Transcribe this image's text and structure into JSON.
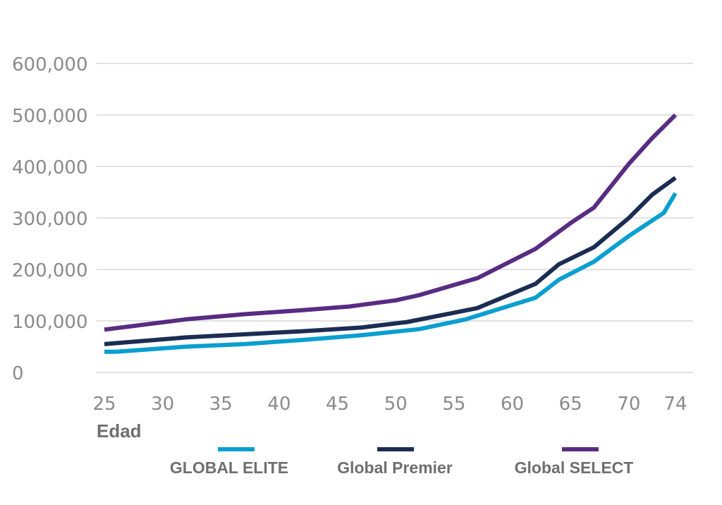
{
  "chart_data": {
    "type": "line",
    "title": "",
    "xlabel": "Edad",
    "ylabel": "",
    "xlim": [
      25,
      74
    ],
    "ylim": [
      0,
      600000
    ],
    "x_ticks": [
      25,
      30,
      35,
      40,
      45,
      50,
      55,
      60,
      65,
      70,
      74
    ],
    "y_ticks": [
      0,
      100000,
      200000,
      300000,
      400000,
      500000,
      600000
    ],
    "y_tick_labels": [
      "0",
      "100,000",
      "200,000",
      "300,000",
      "400,000",
      "500,000",
      "600,000"
    ],
    "grid": true,
    "legend_position": "bottom",
    "series": [
      {
        "name": "GLOBAL ELITE",
        "color": "#0a9fd0",
        "x": [
          25,
          26,
          32,
          37,
          42,
          47,
          52,
          56,
          62,
          64,
          67,
          70,
          73,
          74
        ],
        "y": [
          40000,
          40000,
          50000,
          55000,
          63000,
          72000,
          84000,
          103000,
          145000,
          180000,
          215000,
          265000,
          310000,
          348000
        ]
      },
      {
        "name": "Global Premier",
        "color": "#1b2d52",
        "x": [
          25,
          32,
          37,
          42,
          47,
          51,
          57,
          62,
          64,
          67,
          70,
          72,
          74
        ],
        "y": [
          55000,
          68000,
          74000,
          80000,
          87000,
          98000,
          125000,
          172000,
          210000,
          243000,
          300000,
          345000,
          378000
        ]
      },
      {
        "name": "Global SELECT",
        "color": "#582c83",
        "x": [
          25,
          32,
          37,
          42,
          46,
          50,
          52,
          57,
          62,
          65,
          67,
          70,
          72,
          74
        ],
        "y": [
          83000,
          103000,
          113000,
          121000,
          128000,
          140000,
          150000,
          183000,
          240000,
          290000,
          320000,
          405000,
          455000,
          500000
        ]
      }
    ]
  }
}
